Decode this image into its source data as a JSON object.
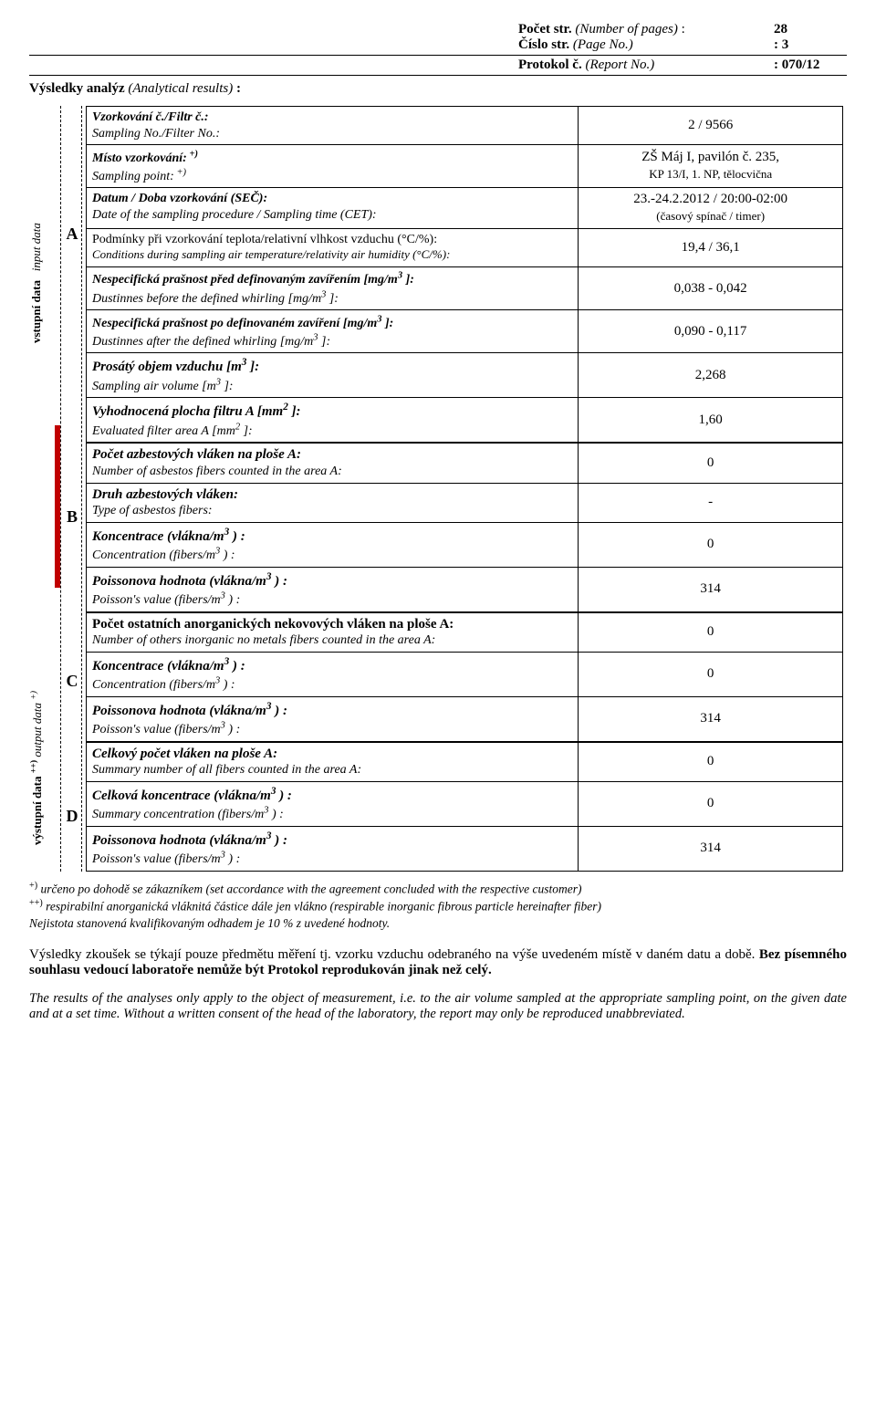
{
  "header": {
    "pages_lbl_cs": "Počet str.",
    "pages_lbl_en": "(Number of pages)",
    "pages_val": "28",
    "page_lbl_cs": "Číslo str.",
    "page_lbl_en": "(Page No.)",
    "page_val": "3",
    "proto_lbl_cs": "Protokol č.",
    "proto_lbl_en": "(Report No.)",
    "proto_val": "070/12",
    "subtitle_cs": "Výsledky analýz",
    "subtitle_en": "(Analytical results)"
  },
  "side": {
    "input_cs": "vstupní data",
    "input_en": "input data",
    "output_cs": "výstupní data",
    "output_en": "output data",
    "sup": "+)",
    "sup2": "++)"
  },
  "letters": {
    "A": "A",
    "B": "B",
    "C": "C",
    "D": "D"
  },
  "rows": [
    {
      "cs": "Vzorkování č./Filtr č.:",
      "en": "Sampling No./Filter No.:",
      "val": "2  /  9566",
      "csBoldItal": true
    },
    {
      "cs": "Místo vzorkování:",
      "sup": "+)",
      "en": "Sampling point:",
      "ensup": "+)",
      "val_l1": "ZŠ Máj I, pavilón č. 235,",
      "val_l2": "KP 13/I, 1. NP, tělocvična",
      "csBoldItal": true
    },
    {
      "cs": "Datum / Doba vzorkování (SEČ):",
      "en": "Date of  the sampling  procedure / Sampling time (CET):",
      "val_l1": "23.-24.2.2012   /   20:00-02:00",
      "val_l2": "(časový spínač / timer)",
      "csBoldItal": true
    },
    {
      "cs": "Podmínky při vzorkování teplota/relativní vlhkost vzduchu (°C/%):",
      "en": "Conditions during sampling air temperature/relativity air humidity (°C/%):",
      "val": "19,4  /  36,1",
      "small": true
    },
    {
      "cs": "Nespecifická prašnost před definovaným zavířením [mg/m",
      "sup3": "3",
      "cs_tail": " ]:",
      "en": "Dustinnes before the defined whirling  [mg/m",
      "en_tail": " ]:",
      "val": "0,038  -  0,042",
      "csBoldItal": true
    },
    {
      "cs": "Nespecifická prašnost po definovaném zavíření [mg/m",
      "sup3": "3",
      "cs_tail": " ]:",
      "en": "Dustinnes after the defined whirling  [mg/m",
      "en_tail": " ]:",
      "val": "0,090  -  0,117",
      "csBoldItal": true
    },
    {
      "cs": "Prosátý objem vzduchu [m",
      "sup3": "3",
      "cs_tail": " ]:",
      "en": "Sampling air volume [m",
      "en_tail": " ]:",
      "val": "2,268",
      "csBoldItal": true,
      "big": true
    },
    {
      "cs": "Vyhodnocená plocha filtru A [mm",
      "sup2": "2",
      "cs_tail": " ]:",
      "en": "Evaluated filter area A [mm",
      "en_tail_sup2": " ]:",
      "val": "1,60",
      "csBoldItal": true,
      "big": true
    },
    {
      "cs": "Počet azbestových vláken na ploše A:",
      "en": "Number of asbestos fibers counted in the area A:",
      "val": "0",
      "csBoldItal": true,
      "big": true,
      "firstB": true
    },
    {
      "cs": "Druh azbestových vláken:",
      "en": "Type of asbestos fibers:",
      "val": "-",
      "csBoldItal": true,
      "big": true
    },
    {
      "cs": "Koncentrace (vlákna/m",
      "sup3": "3",
      "cs_tail": " ) :",
      "en": "Concentration (fibers/m",
      "en_tail": " ) :",
      "val": "0",
      "csBoldItal": true,
      "big": true
    },
    {
      "cs": "Poissonova hodnota (vlákna/m",
      "sup3": "3",
      "cs_tail": " ) :",
      "en": "Poisson's value (fibers/m",
      "en_tail": " ) :",
      "val": "314",
      "csBoldItal": true,
      "big": true
    },
    {
      "cs": "Počet ostatních anorganických nekovových vláken na ploše A:",
      "en": "Number of others inorganic no metals fibers counted in the area A:",
      "val": "0",
      "csBold": true,
      "big": true,
      "firstC": true
    },
    {
      "cs": "Koncentrace (vlákna/m",
      "sup3": "3",
      "cs_tail": " ) :",
      "en": "Concentration (fibers/m",
      "en_tail": " ) :",
      "val": "0",
      "csBoldItal": true,
      "big": true
    },
    {
      "cs": "Poissonova hodnota (vlákna/m",
      "sup3": "3",
      "cs_tail": " ) :",
      "en": "Poisson's value (fibers/m",
      "en_tail": " ) :",
      "val": "314",
      "csBoldItal": true,
      "big": true
    },
    {
      "cs": "Celkový počet vláken na ploše A:",
      "en": "Summary number of all fibers counted in the area A:",
      "val": "0",
      "csBoldItal": true,
      "big": true,
      "firstD": true
    },
    {
      "cs": "Celková koncentrace (vlákna/m",
      "sup3": "3",
      "cs_tail": " ) :",
      "en": "Summary concentration (fibers/m",
      "en_tail": " ) :",
      "val": "0",
      "csBoldItal": true,
      "big": true
    },
    {
      "cs": "Poissonova hodnota (vlákna/m",
      "sup3": "3",
      "cs_tail": " ) :",
      "en": "Poisson's value (fibers/m",
      "en_tail": " ) :",
      "val": "314",
      "csBoldItal": true,
      "big": true
    }
  ],
  "footnotes": {
    "f1_pre": "+)",
    "f1": "určeno po dohodě se zákazníkem (set accordance with the agreement concluded with the respective customer)",
    "f2_pre": "++)",
    "f2": "respirabilní anorganická vláknitá částice dále jen vlákno (respirable inorganic fibrous particle hereinafter fiber)",
    "f3": "Nejistota stanovená kvalifikovaným odhadem je 10 % z uvedené hodnoty."
  },
  "para_cs": "Výsledky zkoušek se týkají pouze předmětu měření tj. vzorku vzduchu odebraného na výše uvedeném místě v daném datu a době. Bez písemného souhlasu vedoucí laboratoře nemůže být Protokol reprodukován jinak než celý.",
  "para_en": "The results of the analyses only apply to the object of measurement, i.e. to the air volume sampled at the appropriate sampling point, on the given date and at a set time. Without a written consent of the head of the laboratory, the report may only be reproduced unabbreviated."
}
